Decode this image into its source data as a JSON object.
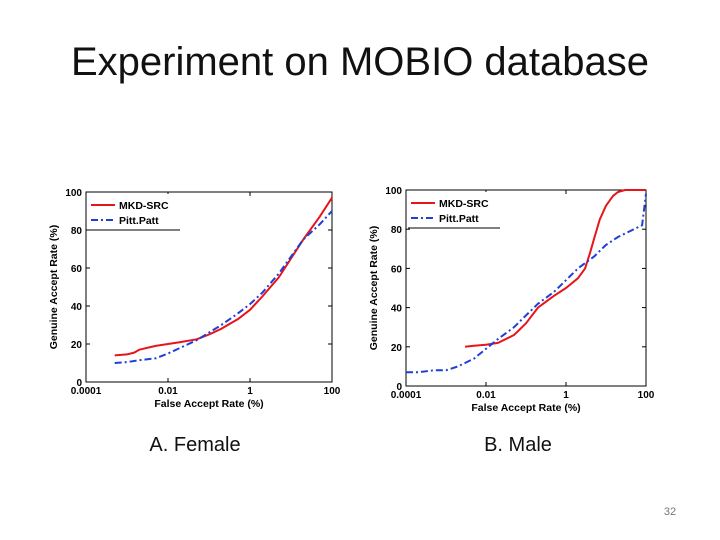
{
  "slide": {
    "title": "Experiment on MOBIO database",
    "page_number": "32"
  },
  "chart_data": [
    {
      "type": "line",
      "caption": "A. Female",
      "xlabel": "False Accept Rate (%)",
      "ylabel": "Genuine Accept Rate (%)",
      "x_scale": "log",
      "xlim": [
        0.0001,
        100
      ],
      "ylim": [
        0,
        100
      ],
      "x_ticks": [
        "0.0001",
        "0.01",
        "1",
        "100"
      ],
      "y_ticks": [
        "0",
        "20",
        "40",
        "60",
        "80",
        "100"
      ],
      "grid": false,
      "legend": "top-left",
      "series": [
        {
          "name": "MKD-SRC",
          "color": "#e8141b",
          "dash": "solid",
          "x": [
            0.0005,
            0.001,
            0.0015,
            0.002,
            0.005,
            0.01,
            0.02,
            0.05,
            0.1,
            0.2,
            0.5,
            1,
            2,
            5,
            10,
            20,
            50,
            100
          ],
          "y": [
            14,
            14.5,
            15.5,
            17,
            19,
            20,
            21,
            22.5,
            25,
            28,
            33,
            38,
            45,
            55,
            65,
            75,
            87,
            97
          ]
        },
        {
          "name": "Pitt.Patt",
          "color": "#1f3fd8",
          "dash": "dashdot",
          "x": [
            0.0005,
            0.001,
            0.002,
            0.005,
            0.01,
            0.02,
            0.05,
            0.1,
            0.2,
            0.5,
            1,
            2,
            5,
            10,
            20,
            50,
            100
          ],
          "y": [
            10,
            10.5,
            11.5,
            12.5,
            15,
            18,
            22,
            26,
            30,
            36,
            41,
            47,
            57,
            66,
            75,
            83,
            90
          ]
        }
      ]
    },
    {
      "type": "line",
      "caption": "B. Male",
      "xlabel": "False Accept Rate (%)",
      "ylabel": "Genuine Accept Rate (%)",
      "x_scale": "log",
      "xlim": [
        0.0001,
        100
      ],
      "ylim": [
        0,
        100
      ],
      "x_ticks": [
        "0.0001",
        "0.01",
        "1",
        "100"
      ],
      "y_ticks": [
        "0",
        "20",
        "40",
        "60",
        "80",
        "100"
      ],
      "grid": false,
      "legend": "top-left",
      "series": [
        {
          "name": "MKD-SRC",
          "color": "#e8141b",
          "dash": "solid",
          "x": [
            0.003,
            0.005,
            0.01,
            0.02,
            0.05,
            0.1,
            0.2,
            0.5,
            1,
            2,
            3,
            4,
            5,
            7,
            10,
            15,
            20,
            30,
            50,
            100
          ],
          "y": [
            20,
            20.5,
            21,
            22,
            26,
            32,
            40,
            46,
            50,
            55,
            60,
            68,
            75,
            85,
            92,
            97,
            99,
            100,
            100,
            100
          ]
        },
        {
          "name": "Pitt.Patt",
          "color": "#1f3fd8",
          "dash": "dashdot",
          "x": [
            0.0001,
            0.0002,
            0.0005,
            0.001,
            0.002,
            0.005,
            0.01,
            0.02,
            0.05,
            0.1,
            0.2,
            0.5,
            1,
            2,
            5,
            10,
            20,
            50,
            80,
            100
          ],
          "y": [
            7,
            7,
            8,
            8,
            10,
            14,
            19,
            24,
            30,
            36,
            42,
            48,
            54,
            60,
            66,
            72,
            76,
            80,
            82,
            98
          ]
        }
      ]
    }
  ]
}
